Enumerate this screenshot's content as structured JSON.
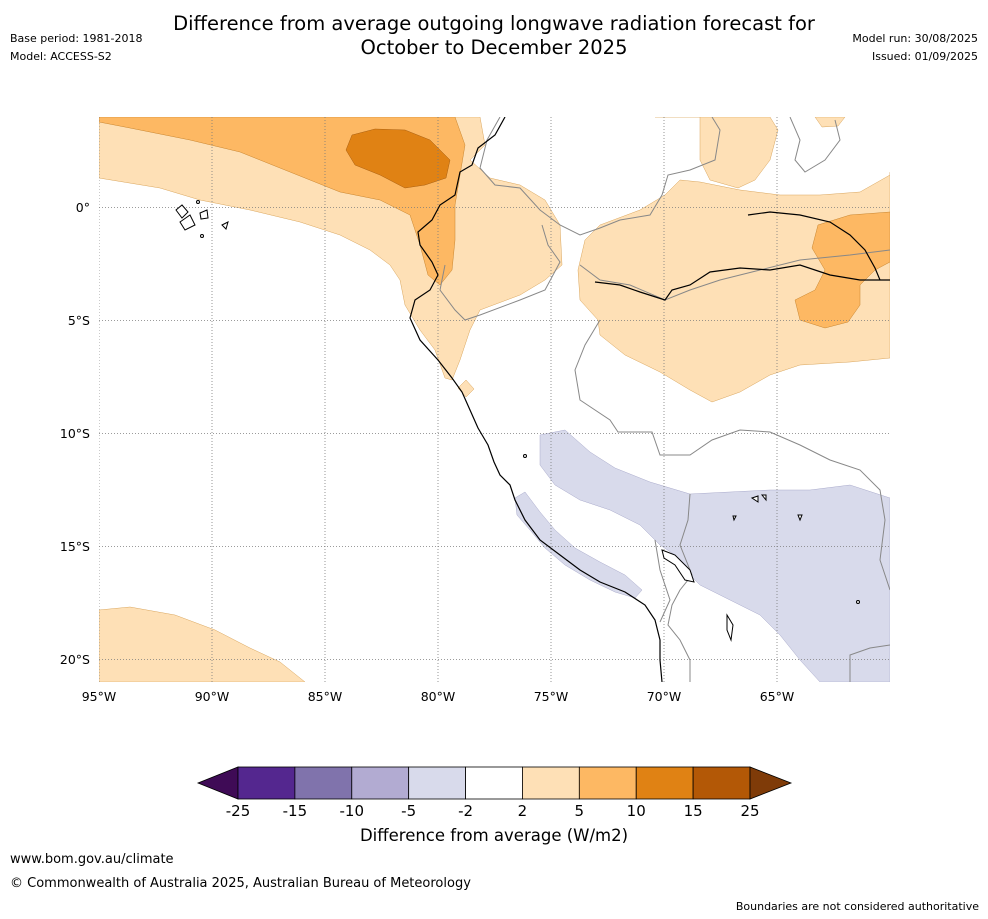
{
  "title_line1": "Difference from average outgoing longwave radiation forecast for",
  "title_line2": "October to December 2025",
  "meta_left": {
    "base_period": "Base period: 1981-2018",
    "model": "Model: ACCESS-S2"
  },
  "meta_right": {
    "model_run": "Model run: 30/08/2025",
    "issued": "Issued: 01/09/2025"
  },
  "map": {
    "lon_range": [
      -95,
      -60
    ],
    "lat_range": [
      -21,
      4
    ],
    "lon_ticks": [
      {
        "v": -95,
        "label": "95°W"
      },
      {
        "v": -90,
        "label": "90°W"
      },
      {
        "v": -85,
        "label": "85°W"
      },
      {
        "v": -80,
        "label": "80°W"
      },
      {
        "v": -75,
        "label": "75°W"
      },
      {
        "v": -70,
        "label": "70°W"
      },
      {
        "v": -65,
        "label": "65°W"
      }
    ],
    "lat_ticks": [
      {
        "v": 0,
        "label": "0°"
      },
      {
        "v": -5,
        "label": "5°S"
      },
      {
        "v": -10,
        "label": "10°S"
      },
      {
        "v": -15,
        "label": "15°S"
      },
      {
        "v": -20,
        "label": "20°S"
      }
    ]
  },
  "colorbar": {
    "ticks": [
      "-25",
      "-15",
      "-10",
      "-5",
      "-2",
      "2",
      "5",
      "10",
      "15",
      "25"
    ],
    "colors": [
      "#3f0b56",
      "#54278f",
      "#8073ac",
      "#b2abd2",
      "#d8daeb",
      "#ffffff",
      "#fee0b6",
      "#fdb863",
      "#e08214",
      "#b35806",
      "#7f3b08"
    ],
    "label": "Difference from average (W/m2)"
  },
  "footer": {
    "url": "www.bom.gov.au/climate",
    "copyright": "© Commonwealth of Australia 2025, Australian Bureau of Meteorology",
    "note": "Boundaries are not considered authoritative"
  }
}
